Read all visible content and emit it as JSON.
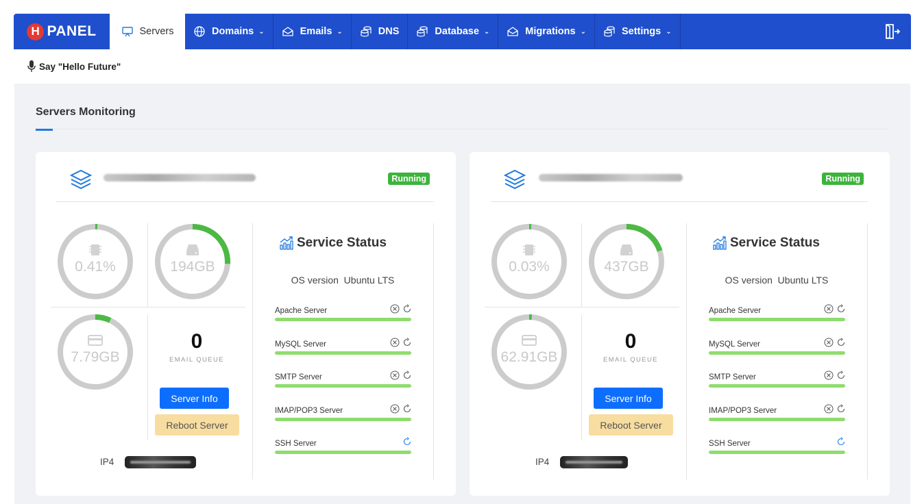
{
  "brand": {
    "letter": "H",
    "name": "PANEL"
  },
  "nav": [
    {
      "label": "Servers",
      "icon": "monitor-icon",
      "active": true,
      "dropdown": false
    },
    {
      "label": "Domains",
      "icon": "globe-icon",
      "dropdown": true
    },
    {
      "label": "Emails",
      "icon": "envelope-icon",
      "dropdown": true
    },
    {
      "label": "DNS",
      "icon": "database-icon",
      "dropdown": false
    },
    {
      "label": "Database",
      "icon": "database-icon",
      "dropdown": true
    },
    {
      "label": "Migrations",
      "icon": "envelope-icon",
      "dropdown": true
    },
    {
      "label": "Settings",
      "icon": "database-icon",
      "dropdown": true
    }
  ],
  "voice_prompt": "Say \"Hello Future\"",
  "section_title": "Servers Monitoring",
  "servers": [
    {
      "name": "server-hostname-redacted",
      "status": "Running",
      "cpu": {
        "label": "0.41%",
        "fraction": 0.0041
      },
      "disk": {
        "label": "194GB",
        "fraction": 0.26
      },
      "memory": {
        "label": "7.79GB",
        "fraction": 0.07
      },
      "email_queue": {
        "count": "0",
        "label": "EMAIL QUEUE"
      },
      "buttons": {
        "info": "Server Info",
        "reboot": "Reboot Server"
      },
      "ip_label": "IP4",
      "ip_value": "ip-redacted",
      "service_status_title": "Service Status",
      "os_label": "OS version",
      "os_value": "Ubuntu LTS",
      "services": [
        {
          "name": "Apache Server",
          "stoppable": true
        },
        {
          "name": "MySQL Server",
          "stoppable": true
        },
        {
          "name": "SMTP Server",
          "stoppable": true
        },
        {
          "name": "IMAP/POP3 Server",
          "stoppable": true
        },
        {
          "name": "SSH Server",
          "stoppable": false
        }
      ]
    },
    {
      "name": "server-hostname-redacted",
      "status": "Running",
      "cpu": {
        "label": "0.03%",
        "fraction": 0.0003
      },
      "disk": {
        "label": "437GB",
        "fraction": 0.2
      },
      "memory": {
        "label": "62.91GB",
        "fraction": 0.012
      },
      "email_queue": {
        "count": "0",
        "label": "EMAIL QUEUE"
      },
      "buttons": {
        "info": "Server Info",
        "reboot": "Reboot Server"
      },
      "ip_label": "IP4",
      "ip_value": "ip-redacted",
      "service_status_title": "Service Status",
      "os_label": "OS version",
      "os_value": "Ubuntu LTS",
      "services": [
        {
          "name": "Apache Server",
          "stoppable": true
        },
        {
          "name": "MySQL Server",
          "stoppable": true
        },
        {
          "name": "SMTP Server",
          "stoppable": true
        },
        {
          "name": "IMAP/POP3 Server",
          "stoppable": true
        },
        {
          "name": "SSH Server",
          "stoppable": false
        }
      ]
    }
  ],
  "colors": {
    "nav": "#1f4fcc",
    "accent": "#1f7ae0",
    "running": "#3cb43c",
    "gauge_fill": "#4cb944",
    "gauge_track": "#cccccc",
    "service_ok": "#8fdc6e"
  }
}
